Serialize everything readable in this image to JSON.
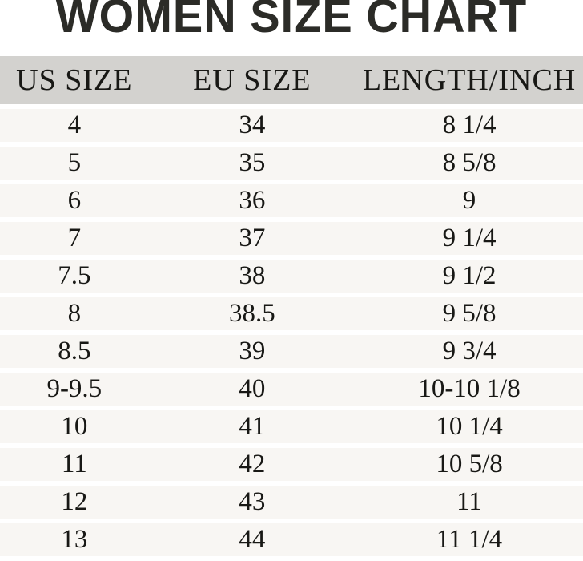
{
  "title": "WOMEN SIZE CHART",
  "colors": {
    "title": "#2b2b27",
    "text": "#181815",
    "header_bg": "#d3d2cf",
    "row_bg": "#f8f6f3",
    "page_bg": "#ffffff"
  },
  "chart_data": {
    "type": "table",
    "title": "WOMEN SIZE CHART",
    "columns": [
      "US SIZE",
      "EU SIZE",
      "LENGTH/INCH"
    ],
    "rows": [
      [
        "4",
        "34",
        "8 1/4"
      ],
      [
        "5",
        "35",
        "8 5/8"
      ],
      [
        "6",
        "36",
        "9"
      ],
      [
        "7",
        "37",
        "9 1/4"
      ],
      [
        "7.5",
        "38",
        "9 1/2"
      ],
      [
        "8",
        "38.5",
        "9 5/8"
      ],
      [
        "8.5",
        "39",
        "9 3/4"
      ],
      [
        "9-9.5",
        "40",
        "10-10 1/8"
      ],
      [
        "10",
        "41",
        "10 1/4"
      ],
      [
        "11",
        "42",
        "10 5/8"
      ],
      [
        "12",
        "43",
        "11"
      ],
      [
        "13",
        "44",
        "11 1/4"
      ]
    ],
    "layout": {
      "legend": "none",
      "grid": "off",
      "row_striping": "uniform light rows separated by white gaps"
    }
  }
}
